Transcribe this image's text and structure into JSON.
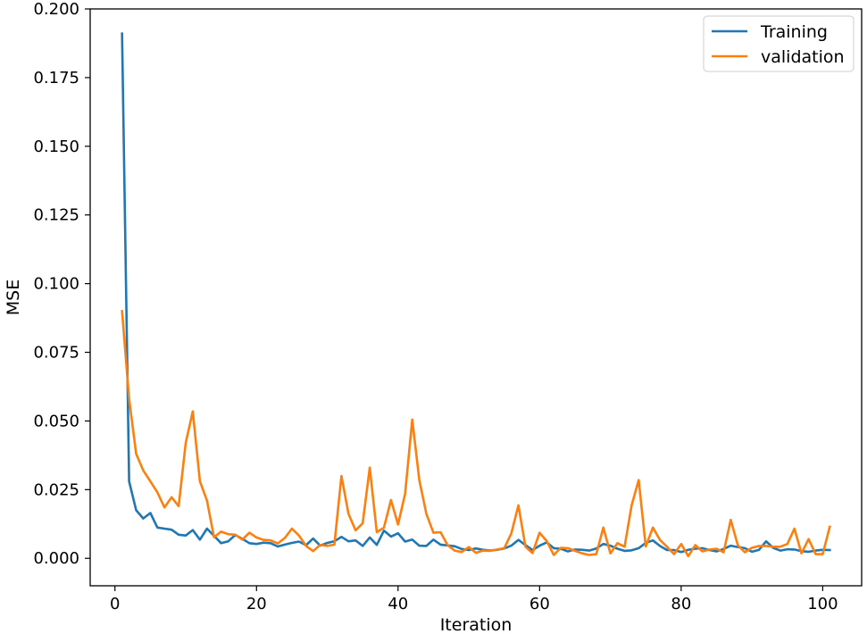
{
  "chart_data": {
    "type": "line",
    "xlabel": "Iteration",
    "ylabel": "MSE",
    "xlim": [
      -3.5,
      105.5
    ],
    "ylim": [
      -0.01,
      0.2
    ],
    "xticks": [
      0,
      20,
      40,
      60,
      80,
      100
    ],
    "yticks": [
      0.0,
      0.025,
      0.05,
      0.075,
      0.1,
      0.125,
      0.15,
      0.175,
      0.2
    ],
    "ytick_labels": [
      "0.000",
      "0.025",
      "0.050",
      "0.075",
      "0.100",
      "0.125",
      "0.150",
      "0.175",
      "0.200"
    ],
    "legend_position": "top-right",
    "grid": false,
    "x": [
      1,
      2,
      3,
      4,
      5,
      6,
      7,
      8,
      9,
      10,
      11,
      12,
      13,
      14,
      15,
      16,
      17,
      18,
      19,
      20,
      21,
      22,
      23,
      24,
      25,
      26,
      27,
      28,
      29,
      30,
      31,
      32,
      33,
      34,
      35,
      36,
      37,
      38,
      39,
      40,
      41,
      42,
      43,
      44,
      45,
      46,
      47,
      48,
      49,
      50,
      51,
      52,
      53,
      54,
      55,
      56,
      57,
      58,
      59,
      60,
      61,
      62,
      63,
      64,
      65,
      66,
      67,
      68,
      69,
      70,
      71,
      72,
      73,
      74,
      75,
      76,
      77,
      78,
      79,
      80,
      81,
      82,
      83,
      84,
      85,
      86,
      87,
      88,
      89,
      90,
      91,
      92,
      93,
      94,
      95,
      96,
      97,
      98,
      99,
      100,
      101
    ],
    "series": [
      {
        "name": "Training",
        "color": "#1f77b4",
        "values": [
          0.191,
          0.028,
          0.0175,
          0.0145,
          0.0165,
          0.0112,
          0.0108,
          0.0104,
          0.0086,
          0.0083,
          0.0103,
          0.0068,
          0.0108,
          0.0082,
          0.0055,
          0.0062,
          0.0085,
          0.0071,
          0.0055,
          0.0052,
          0.0057,
          0.0055,
          0.0043,
          0.005,
          0.0056,
          0.0061,
          0.0048,
          0.0072,
          0.0046,
          0.0056,
          0.0062,
          0.0078,
          0.0062,
          0.0065,
          0.0045,
          0.0076,
          0.0049,
          0.0101,
          0.0079,
          0.0091,
          0.0061,
          0.0068,
          0.0046,
          0.0045,
          0.0068,
          0.005,
          0.0047,
          0.0044,
          0.0034,
          0.003,
          0.0036,
          0.0031,
          0.0028,
          0.0031,
          0.0036,
          0.0046,
          0.0067,
          0.0048,
          0.003,
          0.0046,
          0.0058,
          0.0037,
          0.0035,
          0.0025,
          0.0032,
          0.0031,
          0.0028,
          0.0036,
          0.0052,
          0.0046,
          0.0035,
          0.0027,
          0.0029,
          0.0037,
          0.0056,
          0.0065,
          0.0045,
          0.003,
          0.003,
          0.0023,
          0.0031,
          0.0035,
          0.0037,
          0.003,
          0.0025,
          0.0034,
          0.0046,
          0.0041,
          0.0037,
          0.0024,
          0.0031,
          0.0062,
          0.0038,
          0.0028,
          0.0033,
          0.0032,
          0.0026,
          0.0024,
          0.0028,
          0.0031,
          0.003
        ]
      },
      {
        "name": "validation",
        "color": "#ff7f0e",
        "values": [
          0.09,
          0.058,
          0.038,
          0.032,
          0.028,
          0.024,
          0.0185,
          0.0222,
          0.019,
          0.042,
          0.0535,
          0.028,
          0.021,
          0.0077,
          0.0097,
          0.0088,
          0.0086,
          0.0068,
          0.0093,
          0.0076,
          0.0067,
          0.0065,
          0.0054,
          0.0074,
          0.0108,
          0.0083,
          0.0045,
          0.0026,
          0.0049,
          0.0045,
          0.005,
          0.03,
          0.0162,
          0.0102,
          0.0128,
          0.033,
          0.0095,
          0.0112,
          0.0212,
          0.0123,
          0.0235,
          0.0505,
          0.0285,
          0.0162,
          0.0093,
          0.0095,
          0.0048,
          0.0028,
          0.0023,
          0.0041,
          0.002,
          0.0028,
          0.0027,
          0.0032,
          0.0037,
          0.009,
          0.0193,
          0.0042,
          0.0019,
          0.0093,
          0.0063,
          0.0012,
          0.0038,
          0.0037,
          0.0027,
          0.0018,
          0.0012,
          0.0015,
          0.0112,
          0.0018,
          0.0055,
          0.0042,
          0.0193,
          0.0285,
          0.0043,
          0.0112,
          0.0067,
          0.0042,
          0.0015,
          0.0052,
          0.0008,
          0.0048,
          0.0025,
          0.0032,
          0.0035,
          0.0022,
          0.014,
          0.0048,
          0.0022,
          0.0038,
          0.0045,
          0.0045,
          0.0042,
          0.0042,
          0.0052,
          0.0108,
          0.0018,
          0.007,
          0.0015,
          0.0015,
          0.0115
        ]
      }
    ]
  }
}
